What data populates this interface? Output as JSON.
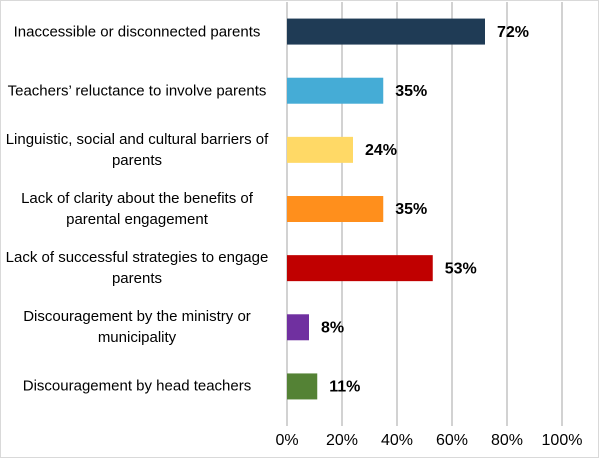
{
  "chart_data": {
    "type": "hbar",
    "categories": [
      "Inaccessible or disconnected parents",
      "Teachers’ reluctance to involve parents",
      "Linguistic, social and cultural barriers of parents",
      "Lack of clarity about the benefits of parental engagement",
      "Lack of successful strategies to engage parents",
      "Discouragement by the ministry or municipality",
      "Discouragement by head teachers"
    ],
    "values": [
      72,
      35,
      24,
      35,
      53,
      8,
      11
    ],
    "value_labels": [
      "72%",
      "35%",
      "24%",
      "35%",
      "53%",
      "8%",
      "11%"
    ],
    "colors": [
      "#1f3b55",
      "#45acd6",
      "#ffd966",
      "#ff8f1c",
      "#c00000",
      "#7030a0",
      "#548235"
    ],
    "xlim": [
      0,
      100
    ],
    "xticks": [
      {
        "value": 0,
        "label": "0%"
      },
      {
        "value": 20,
        "label": "20%"
      },
      {
        "value": 40,
        "label": "40%"
      },
      {
        "value": 60,
        "label": "60%"
      },
      {
        "value": 80,
        "label": "80%"
      },
      {
        "value": 100,
        "label": "100%"
      }
    ],
    "grid": true
  }
}
